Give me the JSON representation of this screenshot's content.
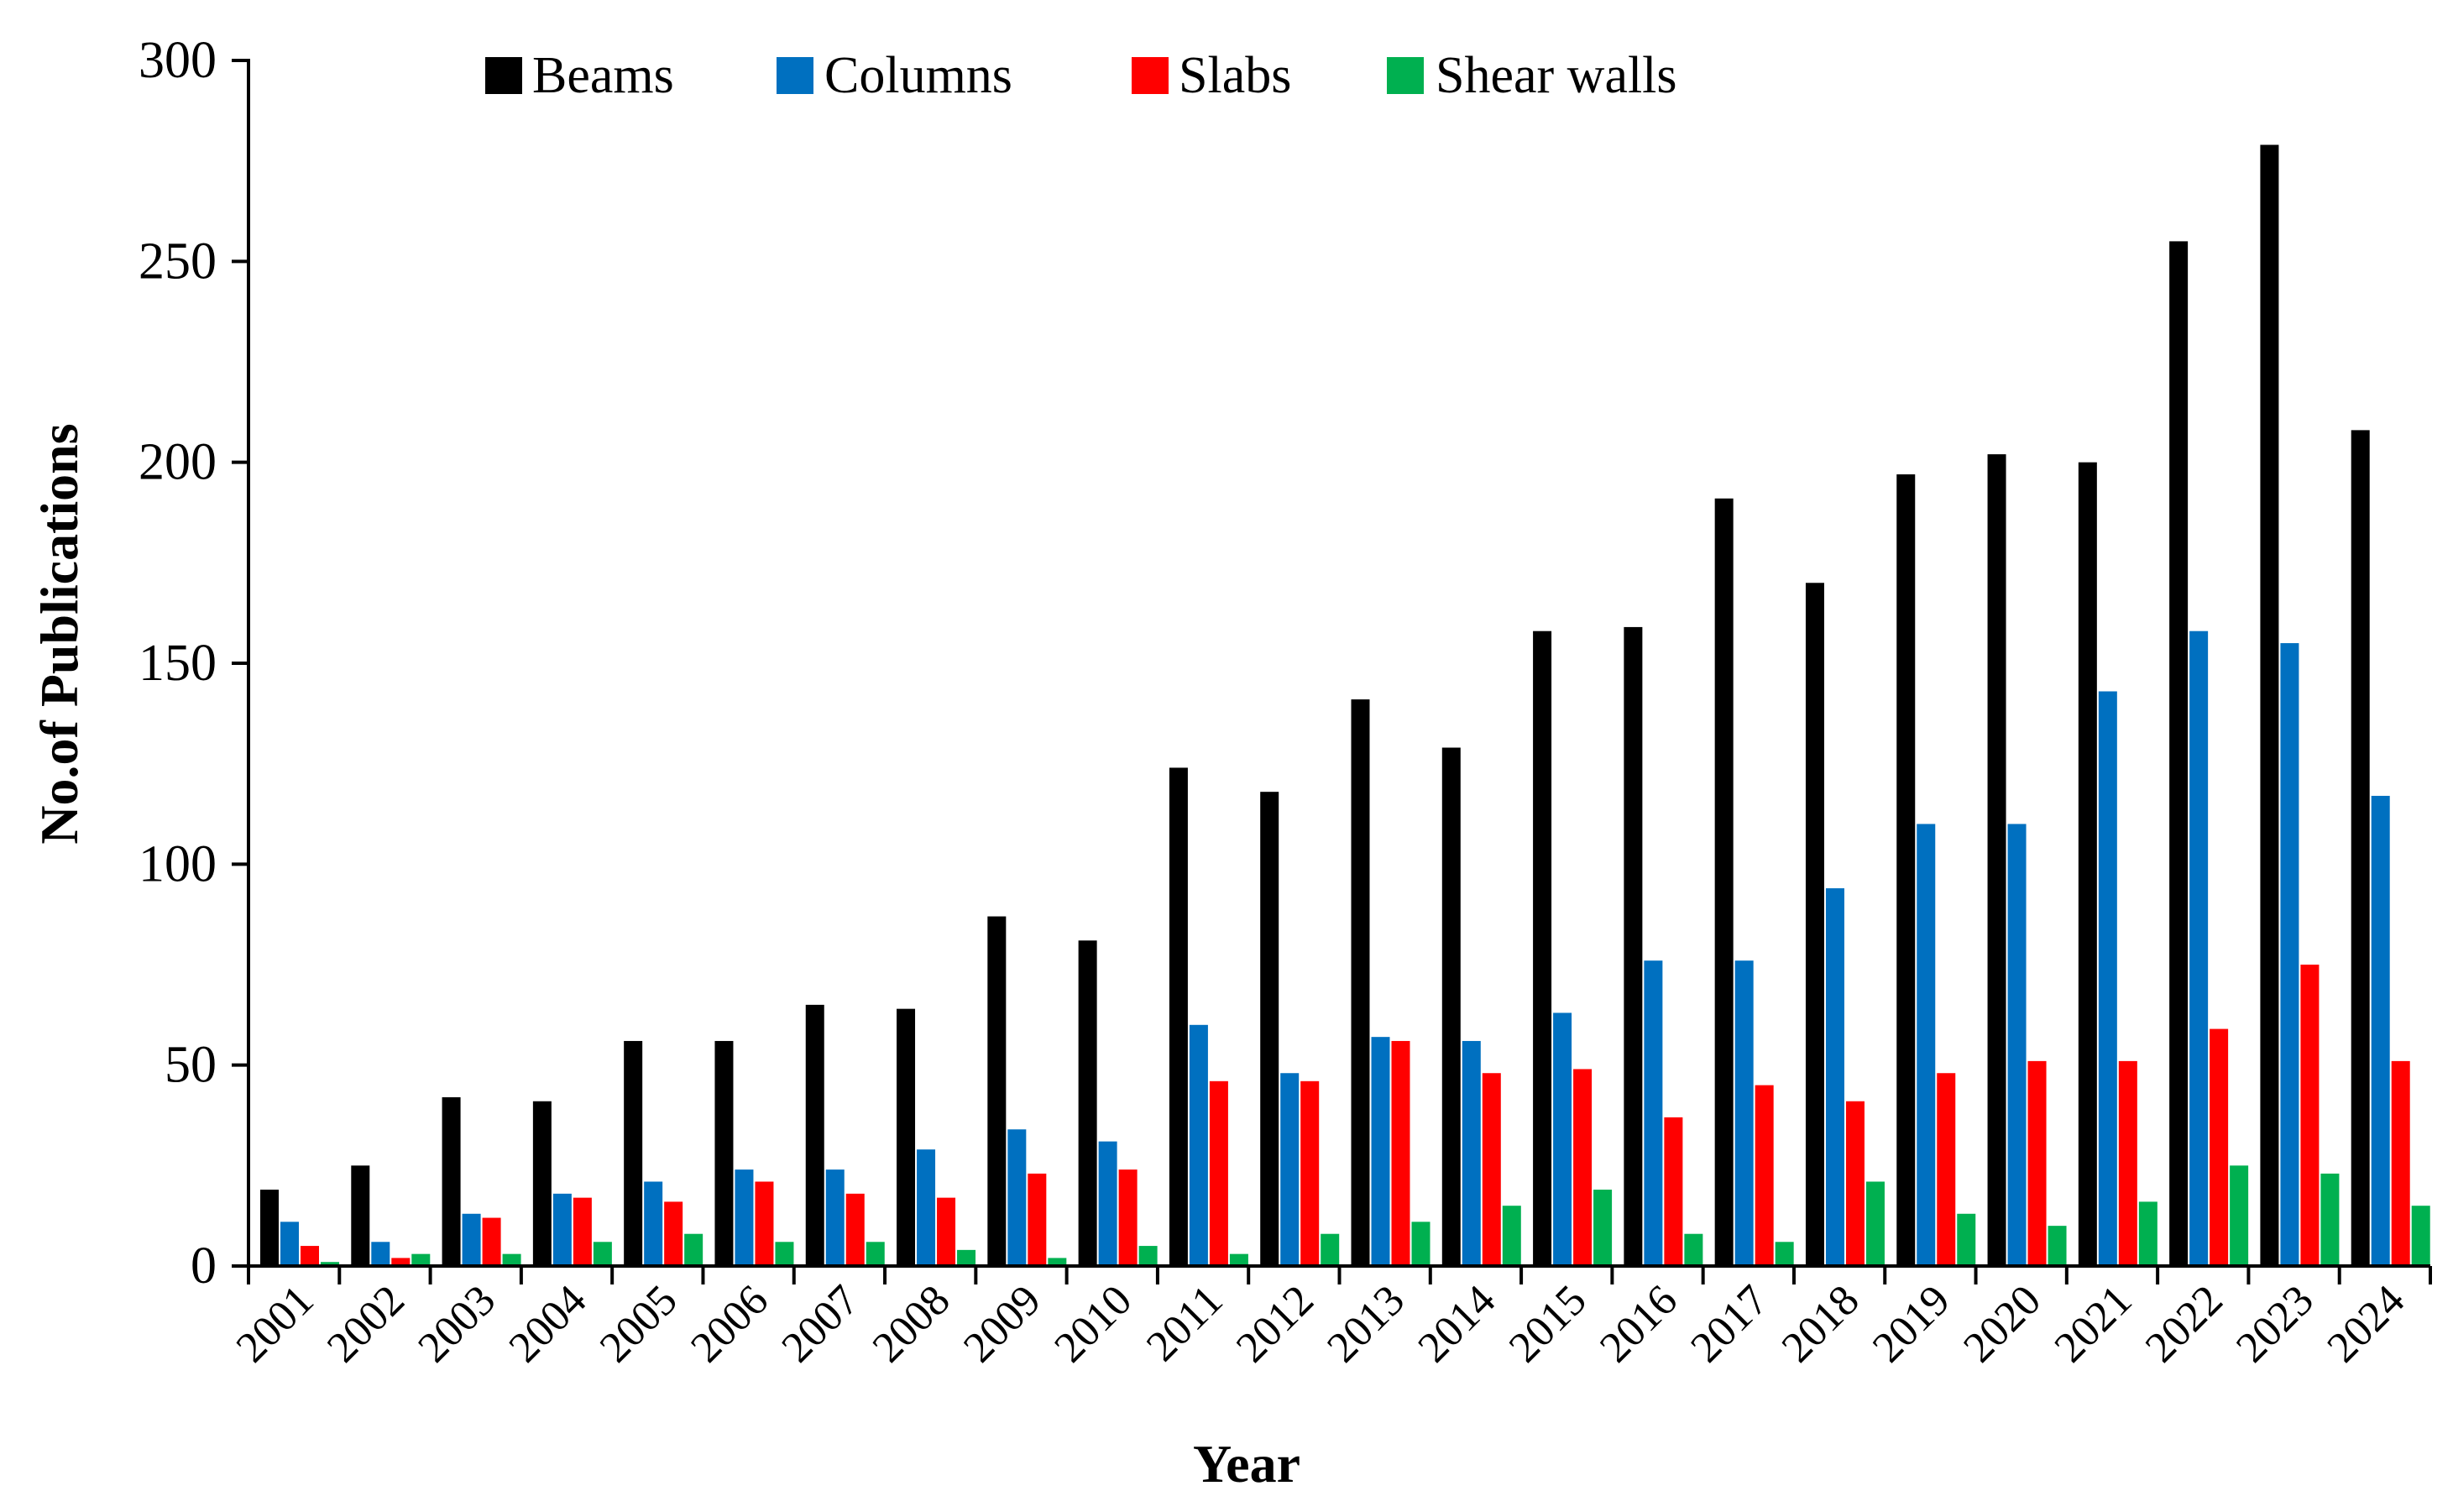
{
  "chart_data": {
    "type": "bar",
    "title": "",
    "xlabel": "Year",
    "ylabel": "No.of Publications",
    "ylim": [
      0,
      300
    ],
    "yticks": [
      0,
      50,
      100,
      150,
      200,
      250,
      300
    ],
    "grid": false,
    "legend_position": "top",
    "categories": [
      "2001",
      "2002",
      "2003",
      "2004",
      "2005",
      "2006",
      "2007",
      "2008",
      "2009",
      "2010",
      "2011",
      "2012",
      "2013",
      "2014",
      "2015",
      "2016",
      "2017",
      "2018",
      "2019",
      "2020",
      "2021",
      "2022",
      "2023",
      "2024"
    ],
    "series": [
      {
        "name": "Beams",
        "color": "#000000",
        "values": [
          19,
          25,
          42,
          41,
          56,
          56,
          65,
          64,
          87,
          81,
          124,
          118,
          141,
          129,
          158,
          159,
          191,
          170,
          197,
          202,
          200,
          255,
          279,
          208
        ]
      },
      {
        "name": "Columns",
        "color": "#0070C0",
        "values": [
          11,
          6,
          13,
          18,
          21,
          24,
          24,
          29,
          34,
          31,
          60,
          48,
          57,
          56,
          63,
          76,
          76,
          94,
          110,
          110,
          143,
          158,
          155,
          117
        ]
      },
      {
        "name": "Slabs",
        "color": "#FF0000",
        "values": [
          5,
          2,
          12,
          17,
          16,
          21,
          18,
          17,
          23,
          24,
          46,
          46,
          56,
          48,
          49,
          37,
          45,
          41,
          48,
          51,
          51,
          59,
          75,
          51
        ]
      },
      {
        "name": "Shear walls",
        "color": "#00B050",
        "values": [
          1,
          3,
          3,
          6,
          8,
          6,
          6,
          4,
          2,
          5,
          3,
          8,
          11,
          15,
          19,
          8,
          6,
          21,
          13,
          10,
          16,
          25,
          23,
          15
        ]
      }
    ]
  }
}
